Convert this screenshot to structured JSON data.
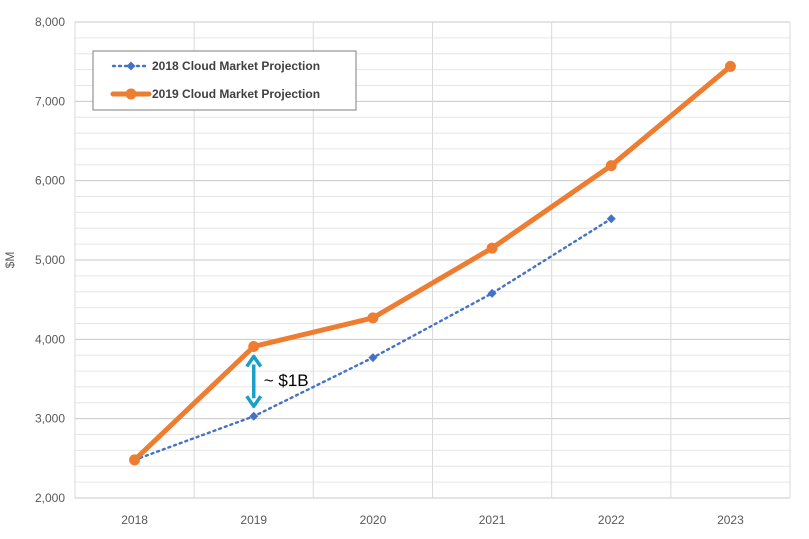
{
  "chart_data": {
    "type": "line",
    "ylabel": "$M",
    "xlabel": "",
    "ylim": [
      2000,
      8000
    ],
    "y_ticks": [
      2000,
      3000,
      4000,
      5000,
      6000,
      7000,
      8000
    ],
    "y_tick_labels": [
      "2,000",
      "3,000",
      "4,000",
      "5,000",
      "6,000",
      "7,000",
      "8,000"
    ],
    "categories": [
      "2018",
      "2019",
      "2020",
      "2021",
      "2022",
      "2023"
    ],
    "grid": true,
    "legend_position": "top-left",
    "series": [
      {
        "name": "2018 Cloud Market Projection",
        "color": "#4472C4",
        "style": "dotted",
        "marker": "diamond",
        "values": [
          2480,
          3030,
          3770,
          4580,
          5520,
          null
        ]
      },
      {
        "name": "2019 Cloud Market Projection",
        "color": "#ED7D31",
        "style": "solid",
        "marker": "circle",
        "values": [
          2480,
          3910,
          4270,
          5150,
          6190,
          7440
        ]
      }
    ],
    "annotations": [
      {
        "text": "~ $1B",
        "category": "2019",
        "from": 3030,
        "to": 3910,
        "color": "#1AA0C8"
      }
    ]
  }
}
